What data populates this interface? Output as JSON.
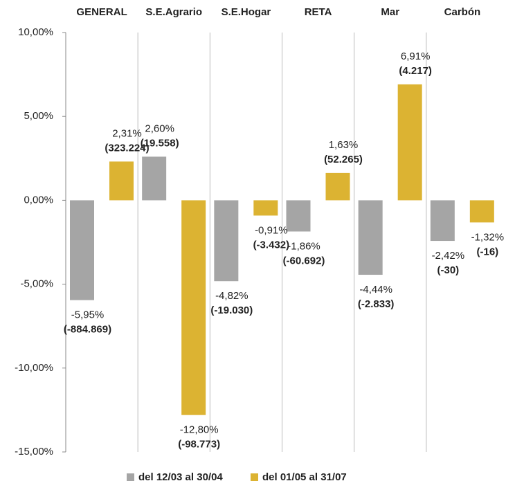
{
  "chart_data": {
    "type": "bar",
    "categories": [
      "GENERAL",
      "S.E.Agrario",
      "S.E.Hogar",
      "RETA",
      "Mar",
      "Carbón"
    ],
    "series": [
      {
        "name": "del 12/03 al 30/04",
        "color": "#a5a5a5",
        "values": [
          -5.95,
          2.6,
          -4.82,
          -1.86,
          -4.44,
          -2.42
        ],
        "value_labels": [
          "-5,95%",
          "2,60%",
          "-4,82%",
          "-1,86%",
          "-4,44%",
          "-2,42%"
        ],
        "count_labels": [
          "(-884.869)",
          "(19.558)",
          "(-19.030)",
          "(-60.692)",
          "(-2.833)",
          "(-30)"
        ]
      },
      {
        "name": "del 01/05 al 31/07",
        "color": "#dcb332",
        "values": [
          2.31,
          -12.8,
          -0.91,
          1.63,
          6.91,
          -1.32
        ],
        "value_labels": [
          "2,31%",
          "-12,80%",
          "-0,91%",
          "1,63%",
          "6,91%",
          "-1,32%"
        ],
        "count_labels": [
          "(323.224)",
          "(-98.773)",
          "(-3.432)",
          "(52.265)",
          "(4.217)",
          "(-16)"
        ]
      }
    ],
    "ylim": [
      -15,
      10
    ],
    "yticks": [
      {
        "value": -15,
        "label": "-15,00%"
      },
      {
        "value": -10,
        "label": "-10,00%"
      },
      {
        "value": -5,
        "label": "-5,00%"
      },
      {
        "value": 0,
        "label": "0,00%"
      },
      {
        "value": 5,
        "label": "5,00%"
      },
      {
        "value": 10,
        "label": "10,00%"
      }
    ],
    "legend": "bottom"
  }
}
